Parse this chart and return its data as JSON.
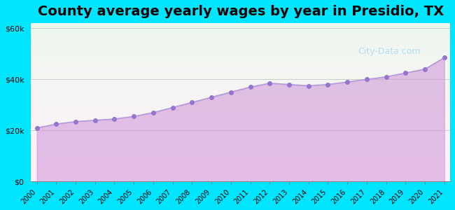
{
  "title": "County average yearly wages by year in Presidio, TX",
  "years": [
    2000,
    2001,
    2002,
    2003,
    2004,
    2005,
    2006,
    2007,
    2008,
    2009,
    2010,
    2011,
    2012,
    2013,
    2014,
    2015,
    2016,
    2017,
    2018,
    2019,
    2020,
    2021
  ],
  "values": [
    21000,
    22500,
    23500,
    24000,
    24500,
    25500,
    27000,
    29000,
    31000,
    33000,
    35000,
    37000,
    38500,
    38000,
    37500,
    38000,
    39000,
    40000,
    41000,
    42500,
    44000,
    48500
  ],
  "line_color": "#b39ddb",
  "fill_color": "#ce93d8",
  "fill_alpha": 0.55,
  "marker_color": "#9575cd",
  "marker_size": 4,
  "background_outer": "#00e5ff",
  "background_inner_top": "#f1f8e9",
  "background_inner_bottom": "#e8eaf6",
  "grid_color": "#cccccc",
  "title_fontsize": 14,
  "tick_fontsize": 8,
  "ytick_labels": [
    "$0",
    "$20k",
    "$40k",
    "$60k"
  ],
  "ytick_values": [
    0,
    20000,
    40000,
    60000
  ],
  "ylim": [
    0,
    62000
  ],
  "watermark": "City-Data.com"
}
